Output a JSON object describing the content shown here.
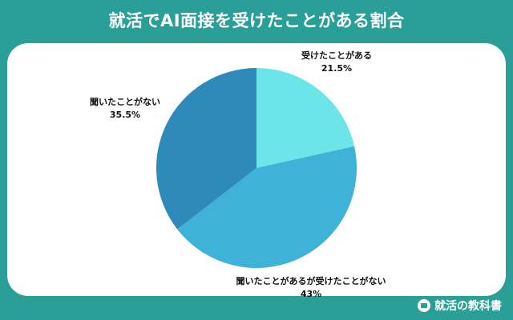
{
  "title": "就活でAI面接を受けたことがある割合",
  "brand": {
    "name": "就活の教科書"
  },
  "chart_data": {
    "type": "pie",
    "title": "就活でAI面接を受けたことがある割合",
    "slices": [
      {
        "label": "受けたことがある",
        "value": 21.5,
        "value_text": "21.5%",
        "color": "#6ce5e8"
      },
      {
        "label": "聞いたことがあるが受けたことがない",
        "value": 43,
        "value_text": "43%",
        "color": "#3fb2d7"
      },
      {
        "label": "聞いたことがない",
        "value": 35.5,
        "value_text": "35.5%",
        "color": "#2e8ab8"
      }
    ]
  }
}
